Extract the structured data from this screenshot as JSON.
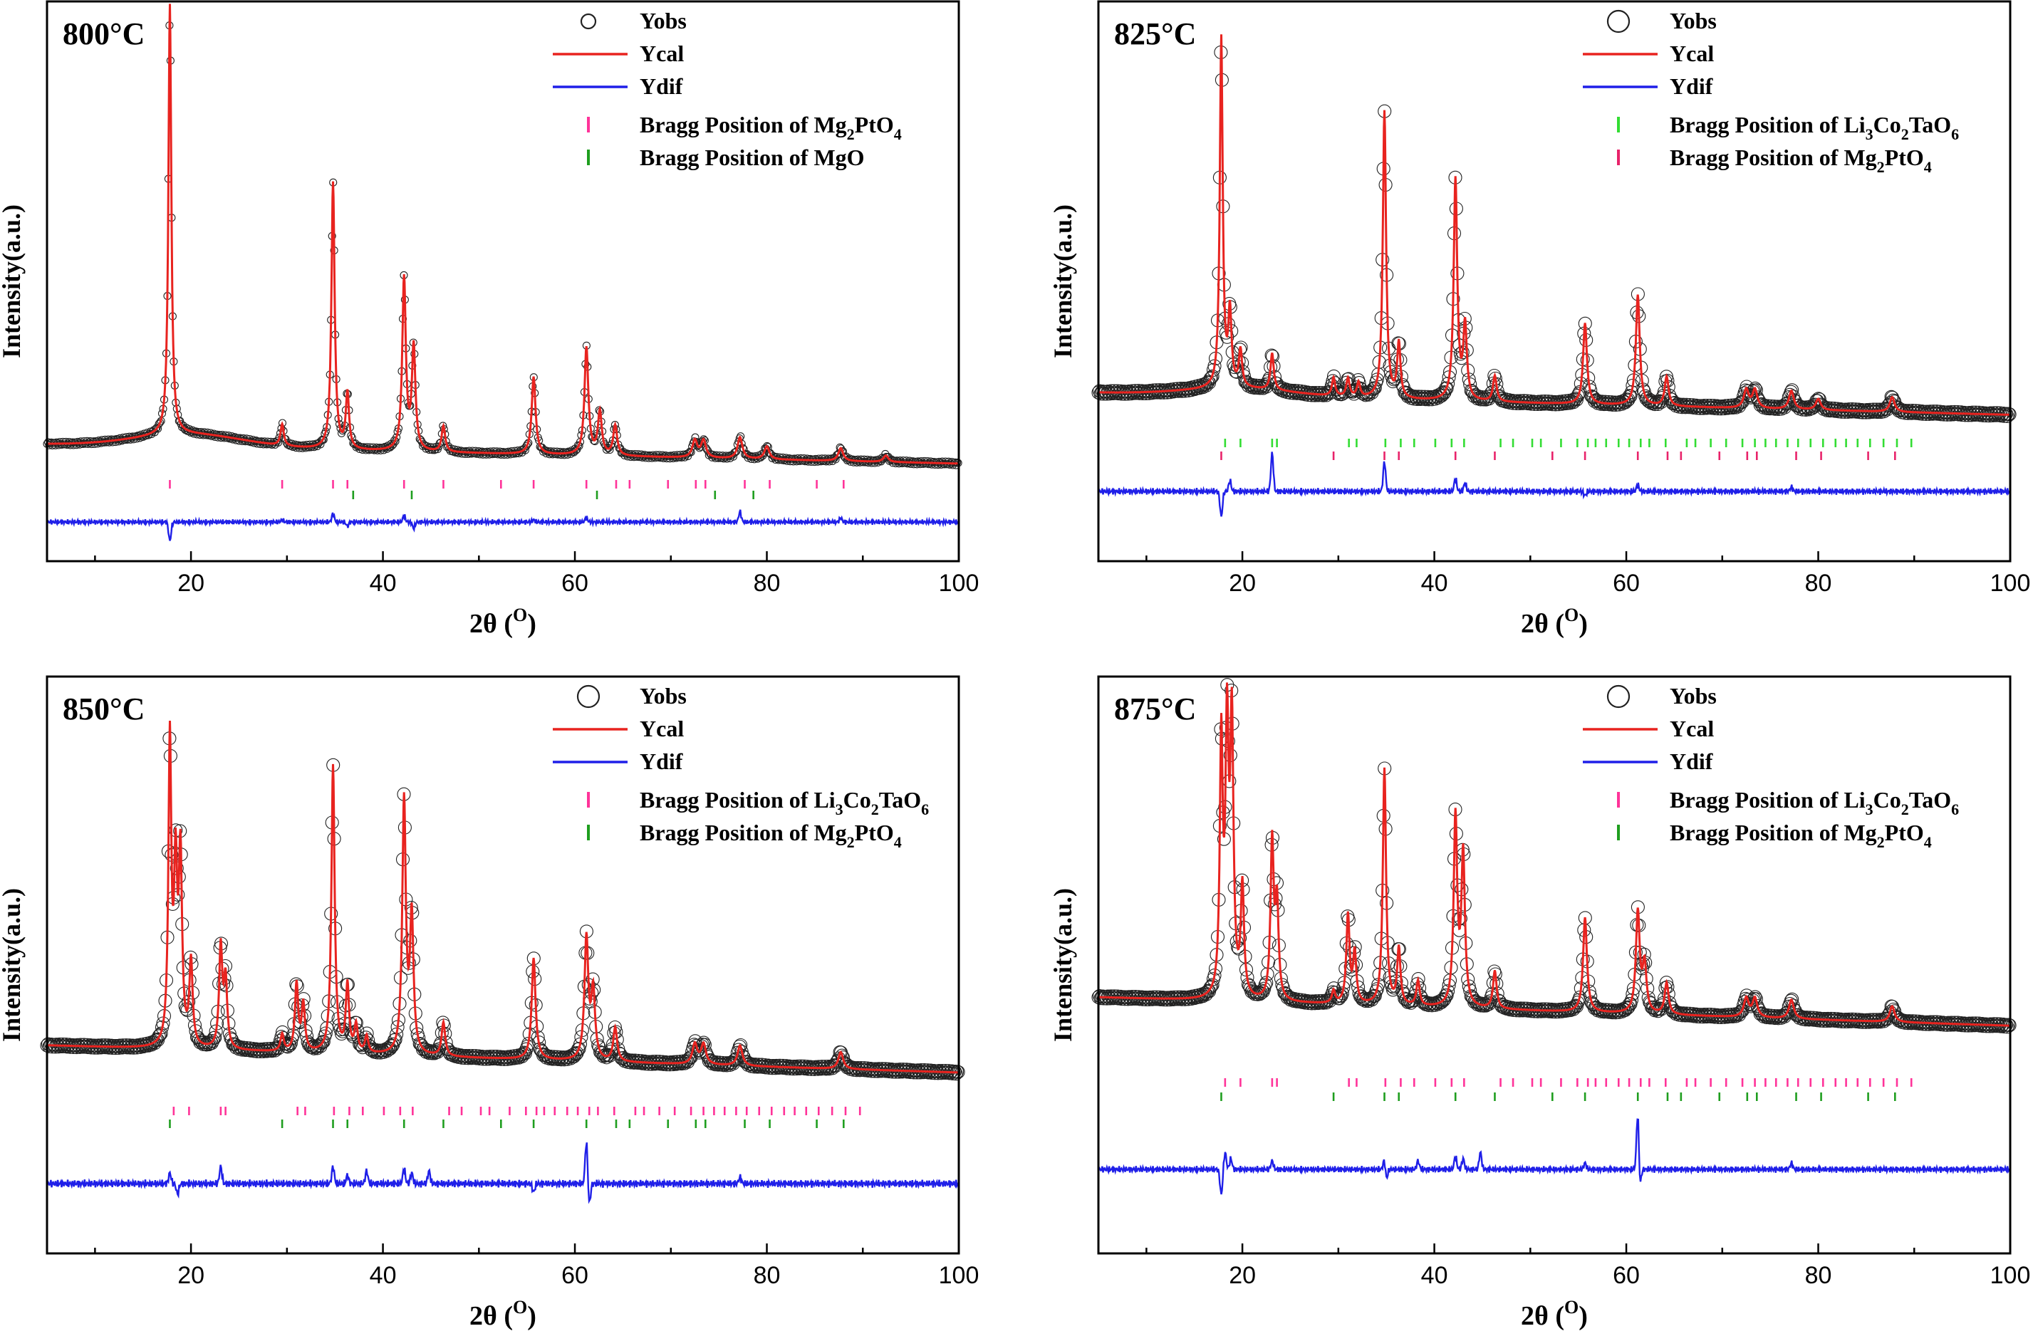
{
  "chart_data": [
    {
      "type": "line",
      "title": "800°C",
      "xlabel": "2θ (O)",
      "ylabel": "Intensity(a.u.)",
      "xlim": [
        5,
        100
      ],
      "xticks": [
        "20",
        "40",
        "60",
        "80",
        "100"
      ],
      "grid": false,
      "legend_position": "top-right",
      "legend": [
        {
          "kind": "marker",
          "label": "Yobs"
        },
        {
          "kind": "line",
          "color": "#e8231f",
          "label": "Ycal"
        },
        {
          "kind": "line",
          "color": "#1f1fe8",
          "label": "Ydif"
        },
        {
          "kind": "tick",
          "color": "#ff3399",
          "label": "Bragg Position of Mg",
          "sub": "2",
          "tail": "PtO",
          "sub2": "4"
        },
        {
          "kind": "tick",
          "color": "#1f9e1f",
          "label": "Bragg Position of MgO"
        }
      ],
      "background": {
        "start": 0.06,
        "end": 0.015,
        "hump": 0.03
      },
      "peaks": [
        [
          17.8,
          1.0,
          0.18
        ],
        [
          29.5,
          0.05,
          0.2
        ],
        [
          34.8,
          0.62,
          0.2
        ],
        [
          36.3,
          0.13,
          0.2
        ],
        [
          42.2,
          0.4,
          0.22
        ],
        [
          43.2,
          0.24,
          0.22
        ],
        [
          46.3,
          0.06,
          0.22
        ],
        [
          55.7,
          0.18,
          0.24
        ],
        [
          61.2,
          0.25,
          0.24
        ],
        [
          62.6,
          0.1,
          0.24
        ],
        [
          64.2,
          0.07,
          0.24
        ],
        [
          72.5,
          0.04,
          0.3
        ],
        [
          73.4,
          0.04,
          0.3
        ],
        [
          77.2,
          0.05,
          0.3
        ],
        [
          80.0,
          0.03,
          0.3
        ],
        [
          87.7,
          0.03,
          0.3
        ],
        [
          92.4,
          0.015,
          0.3
        ]
      ],
      "bragg_rows": [
        {
          "color": "#ff3399",
          "positions": [
            17.8,
            29.5,
            34.8,
            36.3,
            42.2,
            46.3,
            52.3,
            55.7,
            61.2,
            64.3,
            65.7,
            69.7,
            72.6,
            73.6,
            77.7,
            80.3,
            85.2,
            88.0
          ]
        },
        {
          "color": "#1f9e1f",
          "positions": [
            36.9,
            43.0,
            62.3,
            74.6,
            78.6
          ]
        }
      ],
      "diff_spikes": [
        [
          17.8,
          -0.09
        ],
        [
          29.5,
          0.01
        ],
        [
          34.8,
          0.04
        ],
        [
          36.3,
          -0.02
        ],
        [
          42.2,
          0.03
        ],
        [
          43.2,
          -0.03
        ],
        [
          55.7,
          0.01
        ],
        [
          61.2,
          0.02
        ],
        [
          77.2,
          0.05
        ],
        [
          87.7,
          0.02
        ]
      ],
      "diff_noise": 0.008
    },
    {
      "type": "line",
      "title": "825°C",
      "xlabel": "2θ (O)",
      "ylabel": "Intensity(a.u.)",
      "xlim": [
        5,
        100
      ],
      "xticks": [
        "20",
        "40",
        "60",
        "80",
        "100"
      ],
      "grid": false,
      "legend_position": "top-right",
      "legend": [
        {
          "kind": "marker",
          "label": "Yobs"
        },
        {
          "kind": "line",
          "color": "#e8231f",
          "label": "Ycal"
        },
        {
          "kind": "line",
          "color": "#1f1fe8",
          "label": "Ydif"
        },
        {
          "kind": "tick",
          "color": "#33dd33",
          "label": "Bragg Position of Li",
          "sub": "3",
          "tail": "Co",
          "sub2": "2",
          "tail2": "TaO",
          "sub3": "6"
        },
        {
          "kind": "tick",
          "color": "#e8236a",
          "label": "Bragg Position of Mg",
          "sub": "2",
          "tail": "PtO",
          "sub2": "4"
        }
      ],
      "background": {
        "start": 0.09,
        "end": 0.03,
        "hump": 0.02
      },
      "peaks": [
        [
          17.8,
          0.95,
          0.18
        ],
        [
          18.7,
          0.2,
          0.2
        ],
        [
          19.8,
          0.1,
          0.2
        ],
        [
          23.1,
          0.1,
          0.2
        ],
        [
          29.5,
          0.05,
          0.2
        ],
        [
          31.0,
          0.05,
          0.2
        ],
        [
          32.1,
          0.04,
          0.2
        ],
        [
          34.8,
          0.78,
          0.2
        ],
        [
          36.3,
          0.15,
          0.2
        ],
        [
          42.2,
          0.6,
          0.22
        ],
        [
          43.2,
          0.2,
          0.22
        ],
        [
          46.3,
          0.07,
          0.22
        ],
        [
          55.7,
          0.22,
          0.24
        ],
        [
          61.2,
          0.3,
          0.24
        ],
        [
          64.2,
          0.08,
          0.24
        ],
        [
          72.5,
          0.05,
          0.3
        ],
        [
          73.4,
          0.05,
          0.3
        ],
        [
          77.2,
          0.05,
          0.3
        ],
        [
          80.0,
          0.03,
          0.3
        ],
        [
          87.7,
          0.04,
          0.3
        ]
      ],
      "bragg_rows": [
        {
          "color": "#33dd33",
          "positions": [
            18.2,
            19.8,
            23.1,
            23.6,
            31.1,
            31.9,
            34.9,
            36.5,
            37.9,
            40.1,
            41.8,
            43.1,
            46.9,
            48.2,
            50.2,
            51.1,
            53.2,
            54.9,
            56.0,
            56.8,
            57.9,
            59.2,
            60.3,
            61.5,
            62.4,
            64.1,
            66.3,
            67.2,
            68.8,
            70.4,
            72.1,
            73.4,
            74.5,
            75.6,
            76.8,
            77.9,
            79.2,
            80.5,
            81.8,
            82.9,
            84.1,
            85.4,
            86.8,
            88.2,
            89.7
          ]
        },
        {
          "color": "#e8236a",
          "positions": [
            17.8,
            29.5,
            34.8,
            36.3,
            42.2,
            46.3,
            52.3,
            55.7,
            61.2,
            64.3,
            65.7,
            69.7,
            72.6,
            73.6,
            77.7,
            80.3,
            85.2,
            88.0
          ]
        }
      ],
      "diff_spikes": [
        [
          17.8,
          -0.12
        ],
        [
          18.7,
          0.05
        ],
        [
          23.1,
          0.18
        ],
        [
          34.8,
          0.14
        ],
        [
          42.2,
          0.06
        ],
        [
          43.2,
          0.04
        ],
        [
          55.7,
          -0.02
        ],
        [
          61.2,
          0.03
        ],
        [
          77.2,
          0.02
        ]
      ],
      "diff_noise": 0.01
    },
    {
      "type": "line",
      "title": "850°C",
      "xlabel": "2θ (O)",
      "ylabel": "Intensity(a.u.)",
      "xlim": [
        5,
        100
      ],
      "xticks": [
        "20",
        "40",
        "60",
        "80",
        "100"
      ],
      "grid": false,
      "legend_position": "top-right",
      "legend": [
        {
          "kind": "marker",
          "label": "Yobs"
        },
        {
          "kind": "line",
          "color": "#e8231f",
          "label": "Ycal"
        },
        {
          "kind": "line",
          "color": "#1f1fe8",
          "label": "Ydif"
        },
        {
          "kind": "tick",
          "color": "#ff3399",
          "label": "Bragg Position of Li",
          "sub": "3",
          "tail": "Co",
          "sub2": "2",
          "tail2": "TaO",
          "sub3": "6"
        },
        {
          "kind": "tick",
          "color": "#1f9e1f",
          "label": "Bragg Position of Mg",
          "sub": "2",
          "tail": "PtO",
          "sub2": "4"
        }
      ],
      "background": {
        "start": 0.12,
        "end": 0.04,
        "hump": 0.0
      },
      "peaks": [
        [
          17.8,
          0.9,
          0.18
        ],
        [
          18.4,
          0.5,
          0.2
        ],
        [
          18.9,
          0.55,
          0.2
        ],
        [
          20.0,
          0.25,
          0.2
        ],
        [
          23.1,
          0.3,
          0.2
        ],
        [
          23.6,
          0.2,
          0.2
        ],
        [
          29.5,
          0.05,
          0.2
        ],
        [
          31.0,
          0.2,
          0.2
        ],
        [
          31.7,
          0.14,
          0.2
        ],
        [
          34.8,
          0.85,
          0.2
        ],
        [
          36.3,
          0.2,
          0.2
        ],
        [
          37.2,
          0.08,
          0.2
        ],
        [
          38.3,
          0.05,
          0.2
        ],
        [
          42.2,
          0.75,
          0.22
        ],
        [
          43.0,
          0.4,
          0.22
        ],
        [
          46.3,
          0.1,
          0.22
        ],
        [
          55.7,
          0.3,
          0.24
        ],
        [
          61.2,
          0.36,
          0.24
        ],
        [
          61.9,
          0.2,
          0.24
        ],
        [
          64.2,
          0.1,
          0.24
        ],
        [
          72.5,
          0.06,
          0.3
        ],
        [
          73.4,
          0.06,
          0.3
        ],
        [
          77.2,
          0.06,
          0.3
        ],
        [
          87.7,
          0.05,
          0.3
        ]
      ],
      "bragg_rows": [
        {
          "color": "#ff3399",
          "positions": [
            18.2,
            19.8,
            23.1,
            23.6,
            31.1,
            31.9,
            34.9,
            36.5,
            37.9,
            40.1,
            41.8,
            43.1,
            46.9,
            48.2,
            50.2,
            51.1,
            53.2,
            54.9,
            56.0,
            56.8,
            57.9,
            59.2,
            60.3,
            61.5,
            62.4,
            64.1,
            66.3,
            67.2,
            68.8,
            70.4,
            72.1,
            73.4,
            74.5,
            75.6,
            76.8,
            77.9,
            79.2,
            80.5,
            81.8,
            82.9,
            84.1,
            85.4,
            86.8,
            88.2,
            89.7
          ]
        },
        {
          "color": "#1f9e1f",
          "positions": [
            17.8,
            29.5,
            34.8,
            36.3,
            42.2,
            46.3,
            52.3,
            55.7,
            61.2,
            64.3,
            65.7,
            69.7,
            72.6,
            73.6,
            77.7,
            80.3,
            85.2,
            88.0
          ]
        }
      ],
      "diff_spikes": [
        [
          17.8,
          0.05
        ],
        [
          18.6,
          -0.05
        ],
        [
          23.1,
          0.08
        ],
        [
          34.8,
          0.08
        ],
        [
          36.3,
          0.04
        ],
        [
          38.3,
          0.06
        ],
        [
          42.2,
          0.07
        ],
        [
          43.0,
          0.05
        ],
        [
          44.8,
          0.06
        ],
        [
          55.7,
          -0.04
        ],
        [
          61.2,
          0.2
        ],
        [
          61.5,
          -0.1
        ],
        [
          77.2,
          0.03
        ]
      ],
      "diff_noise": 0.012
    },
    {
      "type": "line",
      "title": "875°C",
      "xlabel": "2θ (O)",
      "ylabel": "Intensity(a.u.)",
      "xlim": [
        5,
        100
      ],
      "xticks": [
        "20",
        "40",
        "60",
        "80",
        "100"
      ],
      "grid": false,
      "legend_position": "top-right",
      "legend": [
        {
          "kind": "marker",
          "label": "Yobs"
        },
        {
          "kind": "line",
          "color": "#e8231f",
          "label": "Ycal"
        },
        {
          "kind": "line",
          "color": "#1f1fe8",
          "label": "Ydif"
        },
        {
          "kind": "tick",
          "color": "#ff3399",
          "label": "Bragg Position of Li",
          "sub": "3",
          "tail": "Co",
          "sub2": "2",
          "tail2": "TaO",
          "sub3": "6"
        },
        {
          "kind": "tick",
          "color": "#1f9e1f",
          "label": "Bragg Position of Mg",
          "sub": "2",
          "tail": "PtO",
          "sub2": "4"
        }
      ],
      "background": {
        "start": 0.13,
        "end": 0.04,
        "hump": 0.0
      },
      "peaks": [
        [
          17.8,
          0.8,
          0.18
        ],
        [
          18.4,
          0.82,
          0.2
        ],
        [
          18.9,
          0.85,
          0.2
        ],
        [
          20.0,
          0.35,
          0.2
        ],
        [
          23.1,
          0.5,
          0.2
        ],
        [
          23.6,
          0.3,
          0.2
        ],
        [
          29.5,
          0.04,
          0.2
        ],
        [
          31.0,
          0.28,
          0.2
        ],
        [
          31.7,
          0.16,
          0.2
        ],
        [
          34.8,
          0.75,
          0.2
        ],
        [
          36.3,
          0.18,
          0.2
        ],
        [
          38.3,
          0.08,
          0.2
        ],
        [
          42.2,
          0.6,
          0.22
        ],
        [
          43.0,
          0.48,
          0.22
        ],
        [
          46.3,
          0.12,
          0.22
        ],
        [
          55.7,
          0.3,
          0.24
        ],
        [
          61.2,
          0.32,
          0.24
        ],
        [
          61.9,
          0.15,
          0.24
        ],
        [
          64.2,
          0.1,
          0.24
        ],
        [
          72.5,
          0.06,
          0.3
        ],
        [
          73.4,
          0.06,
          0.3
        ],
        [
          77.2,
          0.06,
          0.3
        ],
        [
          87.7,
          0.05,
          0.3
        ]
      ],
      "bragg_rows": [
        {
          "color": "#ff3399",
          "positions": [
            18.2,
            19.8,
            23.1,
            23.6,
            31.1,
            31.9,
            34.9,
            36.5,
            37.9,
            40.1,
            41.8,
            43.1,
            46.9,
            48.2,
            50.2,
            51.1,
            53.2,
            54.9,
            56.0,
            56.8,
            57.9,
            59.2,
            60.3,
            61.5,
            62.4,
            64.1,
            66.3,
            67.2,
            68.8,
            70.4,
            72.1,
            73.4,
            74.5,
            75.6,
            76.8,
            77.9,
            79.2,
            80.5,
            81.8,
            82.9,
            84.1,
            85.4,
            86.8,
            88.2,
            89.7
          ]
        },
        {
          "color": "#1f9e1f",
          "positions": [
            17.8,
            29.5,
            34.8,
            36.3,
            42.2,
            46.3,
            52.3,
            55.7,
            61.2,
            64.3,
            65.7,
            69.7,
            72.6,
            73.6,
            77.7,
            80.3,
            85.2,
            88.0
          ]
        }
      ],
      "diff_spikes": [
        [
          17.8,
          -0.12
        ],
        [
          18.2,
          0.08
        ],
        [
          18.8,
          0.05
        ],
        [
          23.1,
          0.04
        ],
        [
          34.8,
          0.05
        ],
        [
          35.0,
          -0.05
        ],
        [
          38.3,
          0.04
        ],
        [
          42.2,
          0.06
        ],
        [
          43.0,
          0.05
        ],
        [
          44.8,
          0.08
        ],
        [
          55.7,
          0.03
        ],
        [
          61.2,
          0.28
        ],
        [
          61.4,
          -0.1
        ],
        [
          77.2,
          0.03
        ]
      ],
      "diff_noise": 0.01
    }
  ]
}
